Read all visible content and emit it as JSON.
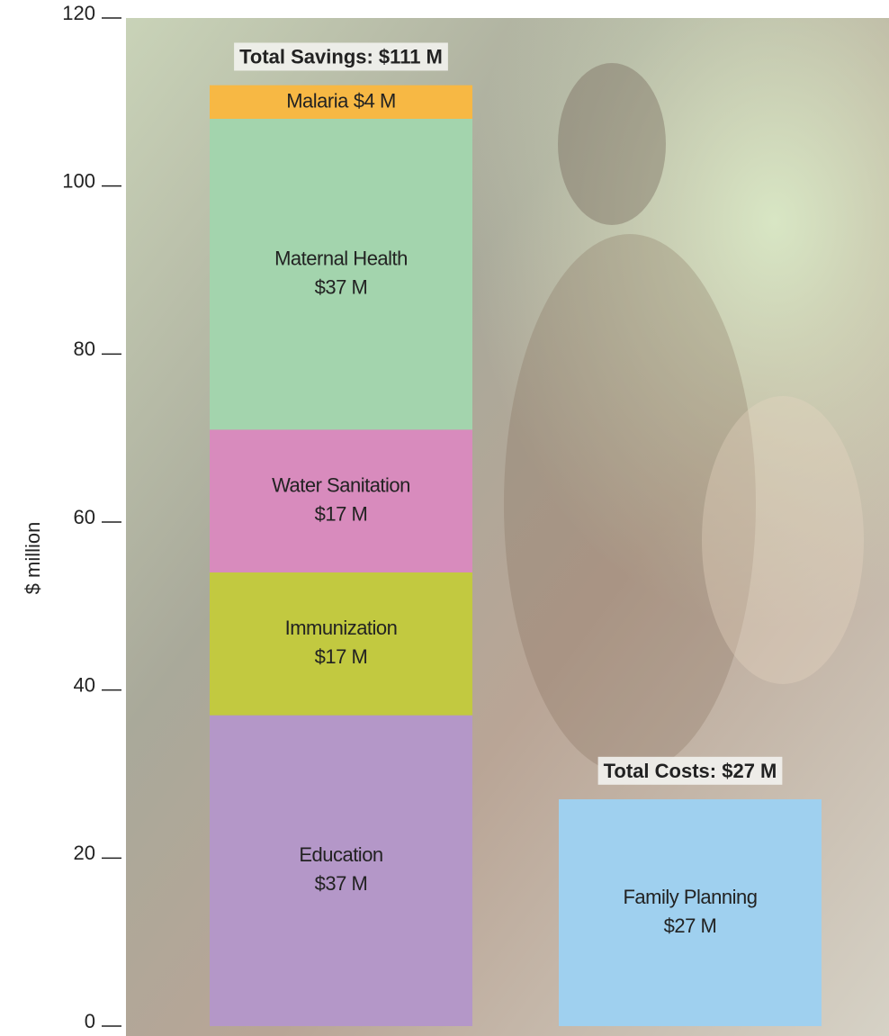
{
  "chart_data": {
    "type": "bar",
    "stacked": true,
    "y_label": "$ million",
    "categories": [
      null,
      null
    ],
    "annotations": [
      "Total Savings: $111 M",
      "Total Costs: $27 M"
    ],
    "series": [
      {
        "name": "Education",
        "color": "#b497c8",
        "values": [
          37,
          null
        ],
        "value_labels": [
          "$37 M",
          null
        ]
      },
      {
        "name": "Immunization",
        "color": "#c2c940",
        "values": [
          17,
          null
        ],
        "value_labels": [
          "$17 M",
          null
        ]
      },
      {
        "name": "Water Sanitation",
        "color": "#d88bbd",
        "values": [
          17,
          null
        ],
        "value_labels": [
          "$17 M",
          null
        ]
      },
      {
        "name": "Maternal Health",
        "color": "#a3d4ad",
        "values": [
          37,
          null
        ],
        "value_labels": [
          "$37 M",
          null
        ]
      },
      {
        "name": "Malaria",
        "color": "#f7b844",
        "values": [
          4,
          null
        ],
        "value_labels": [
          "$4 M",
          null
        ]
      },
      {
        "name": "Family Planning",
        "color": "#9fd0ef",
        "values": [
          null,
          27
        ],
        "value_labels": [
          null,
          "$27 M"
        ]
      }
    ],
    "ylim": [
      0,
      120
    ],
    "yticks": [
      0,
      20,
      40,
      60,
      80,
      100,
      120
    ]
  }
}
